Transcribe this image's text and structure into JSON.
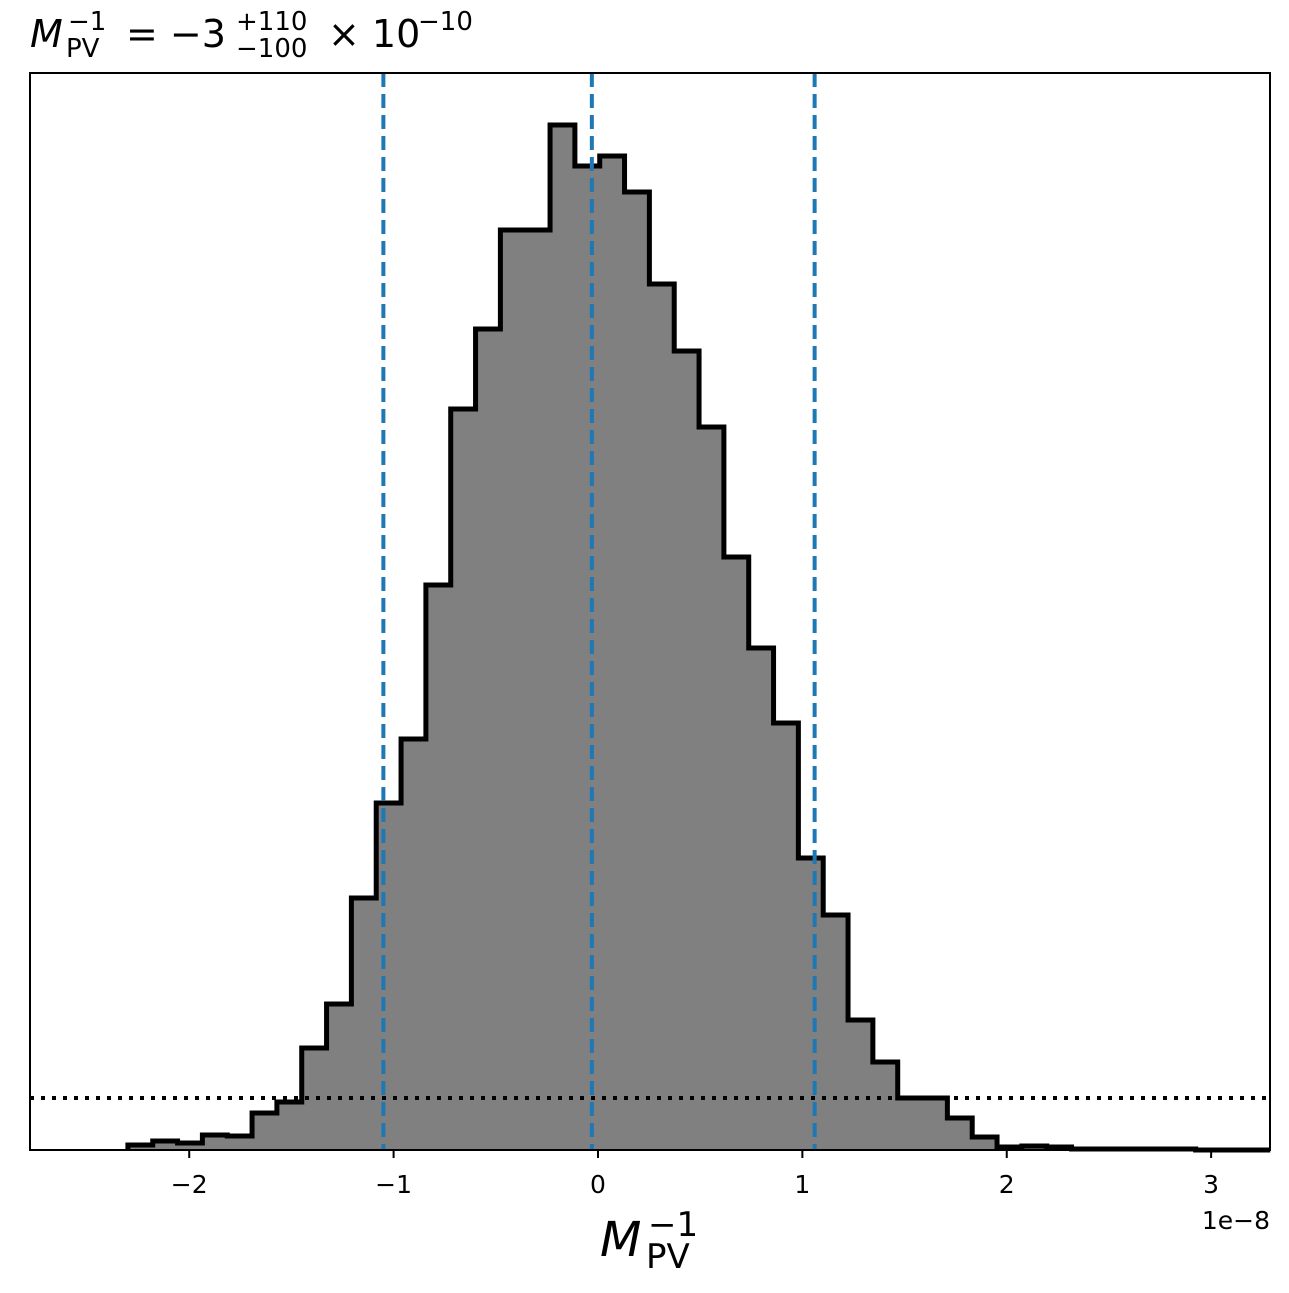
{
  "chart_data": {
    "type": "histogram",
    "title": {
      "symbol": "M",
      "subscript": "PV",
      "superscript": "−1",
      "equals": "= −3",
      "upper": "+110",
      "lower": "−100",
      "times": "× 10",
      "exponent": "−10"
    },
    "x_label": {
      "symbol": "M",
      "subscript": "PV",
      "superscript": "−1"
    },
    "x_offset_label": "1e−8",
    "bins": [
      -2.3,
      -2.1785,
      -2.057,
      -1.9355,
      -1.814,
      -1.6925,
      -1.571,
      -1.4495,
      -1.328,
      -1.2065,
      -1.085,
      -0.9635,
      -0.842,
      -0.7205,
      -0.599,
      -0.4775,
      -0.356,
      -0.2345,
      -0.113,
      0.0085,
      0.13,
      0.2515,
      0.373,
      0.4945,
      0.616,
      0.7375,
      0.859,
      0.9805,
      1.102,
      1.2235,
      1.345,
      1.4665,
      1.588,
      1.7095,
      1.831,
      1.9525,
      2.074,
      2.1955,
      2.317,
      2.4385,
      2.56,
      2.6815,
      2.803,
      2.9245,
      3.046,
      3.1675,
      3.289
    ],
    "values": [
      5,
      9,
      7,
      15,
      14,
      37,
      48,
      102,
      146,
      252,
      347,
      411,
      565,
      741,
      821,
      920,
      920,
      1025,
      984,
      994,
      958,
      866,
      799,
      723,
      593,
      502,
      427,
      292,
      235,
      130,
      88,
      52,
      52,
      32,
      13,
      3,
      4,
      3,
      1,
      1,
      1,
      1,
      1,
      0,
      0,
      0
    ],
    "color": "#808080",
    "edge_color": "#000000",
    "xlim": [
      -2.779,
      3.288
    ],
    "ylim": [
      0,
      1077
    ],
    "xticks": [
      {
        "value": -2,
        "label": "−2"
      },
      {
        "value": -1,
        "label": "−1"
      },
      0,
      1,
      2,
      3
    ],
    "vlines": [
      -1.05,
      -0.03,
      1.06
    ],
    "vline_color": "#1f77b4",
    "hline": 52,
    "hline_color": "#000000"
  }
}
